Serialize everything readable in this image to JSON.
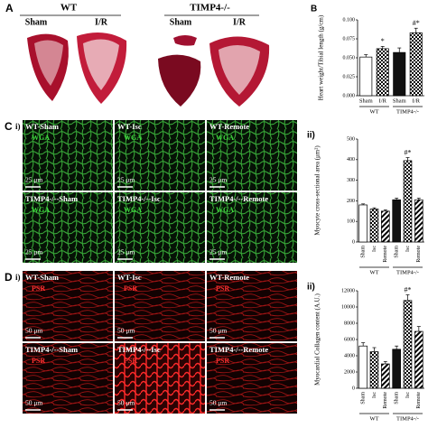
{
  "panel_a": {
    "label": "A",
    "groups": [
      {
        "name": "WT",
        "conditions": [
          "Sham",
          "I/R"
        ]
      },
      {
        "name": "TIMP4-/-",
        "conditions": [
          "Sham",
          "I/R"
        ]
      }
    ]
  },
  "panel_c": {
    "label": "C",
    "sublabel": "i)",
    "stain": "WGA",
    "scale": "25 μm",
    "images": [
      "WT-Sham",
      "WT-Isc",
      "WT-Remote",
      "TIMP4-/--Sham",
      "TIMP4-/--Isc",
      "TIMP4-/--Remote"
    ]
  },
  "panel_d": {
    "label": "D",
    "sublabel": "i)",
    "stain": "PSR",
    "scale": "50 μm",
    "images": [
      "WT-Sham",
      "WT-Isc",
      "WT-Remote",
      "TIMP4-/--Sham",
      "TIMP4-/--Isc",
      "TIMP4-/--Remote"
    ]
  },
  "chart_data": [
    {
      "type": "bar",
      "label": "B",
      "ylabel": "Heart weight/Tibial length (g/cm)",
      "categories": [
        "Sham",
        "I/R",
        "Sham",
        "I/R"
      ],
      "groups": [
        "WT",
        "TIMP4-/-"
      ],
      "values": [
        0.051,
        0.062,
        0.057,
        0.083
      ],
      "errors": [
        0.003,
        0.003,
        0.006,
        0.006
      ],
      "annotations": [
        null,
        "*",
        null,
        "#*"
      ],
      "fills": [
        "white",
        "check",
        "black",
        "check"
      ],
      "ylim": [
        0,
        0.1
      ],
      "yticks": [
        {
          "value": 0,
          "label": "0.000"
        },
        {
          "value": 0.025,
          "label": "0.025"
        },
        {
          "value": 0.05,
          "label": "0.050"
        },
        {
          "value": 0.075,
          "label": "0.075"
        },
        {
          "value": 0.1,
          "label": "0.100"
        }
      ]
    },
    {
      "type": "bar",
      "label": "ii)",
      "ylabel": "Myocyte cross-sectional area (μm²)",
      "categories": [
        "Sham",
        "Isc",
        "Remote",
        "Sham",
        "Isc",
        "Remote"
      ],
      "groups": [
        "WT",
        "TIMP4-/-"
      ],
      "values": [
        180,
        160,
        150,
        205,
        395,
        205
      ],
      "errors": [
        5,
        6,
        6,
        8,
        15,
        8
      ],
      "annotations": [
        null,
        null,
        null,
        null,
        "#*",
        null
      ],
      "fills": [
        "white",
        "check",
        "hatch",
        "black",
        "check",
        "hatch"
      ],
      "ylim": [
        0,
        500
      ],
      "yticks": [
        0,
        100,
        200,
        300,
        400,
        500
      ]
    },
    {
      "type": "bar",
      "label": "ii)",
      "ylabel": "Myocardial Collagen content (A.U.)",
      "categories": [
        "Sham",
        "Isc",
        "Remote",
        "Sham",
        "Isc",
        "Remote"
      ],
      "groups": [
        "WT",
        "TIMP4-/-"
      ],
      "values": [
        5200,
        4500,
        3000,
        4800,
        10800,
        7000
      ],
      "errors": [
        400,
        500,
        300,
        400,
        700,
        600
      ],
      "annotations": [
        null,
        null,
        null,
        null,
        "#*",
        null
      ],
      "fills": [
        "white",
        "check",
        "hatch",
        "black",
        "check",
        "hatch"
      ],
      "ylim": [
        0,
        12000
      ],
      "yticks": [
        0,
        2000,
        4000,
        6000,
        8000,
        10000,
        12000
      ]
    }
  ]
}
